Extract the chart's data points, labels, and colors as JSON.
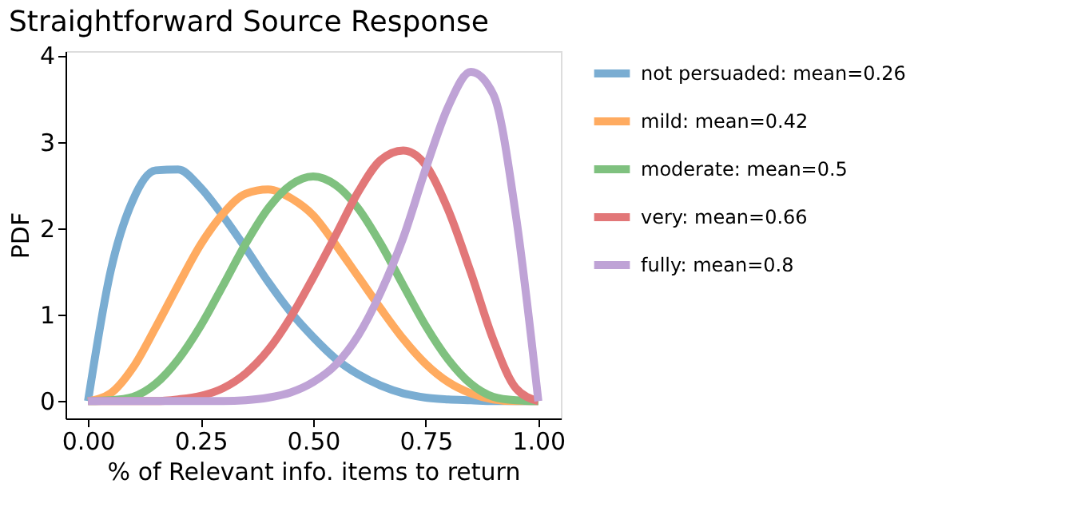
{
  "chart_data": {
    "type": "line",
    "title": "Straightforward Source Response",
    "xlabel": "% of Relevant info. items to return",
    "ylabel": "PDF",
    "x": [
      0,
      0.05,
      0.1,
      0.15,
      0.2,
      0.25,
      0.3,
      0.35,
      0.4,
      0.45,
      0.5,
      0.55,
      0.6,
      0.65,
      0.7,
      0.75,
      0.8,
      0.85,
      0.9,
      0.95,
      1
    ],
    "series": [
      {
        "name": "not persuaded: mean=0.26",
        "color": "#7aadd2",
        "values": [
          0,
          1.5,
          2.33,
          2.67,
          2.68,
          2.47,
          2.14,
          1.77,
          1.38,
          1.03,
          0.74,
          0.49,
          0.31,
          0.18,
          0.09,
          0.04,
          0.02,
          0.01,
          0,
          0,
          0
        ]
      },
      {
        "name": "mild: mean=0.42",
        "color": "#ffab60",
        "values": [
          0,
          0.09,
          0.39,
          0.85,
          1.34,
          1.81,
          2.17,
          2.4,
          2.45,
          2.35,
          2.15,
          1.81,
          1.44,
          1.07,
          0.72,
          0.43,
          0.22,
          0.09,
          0.02,
          0,
          0
        ]
      },
      {
        "name": "moderate: mean=0.5",
        "color": "#7fc17f",
        "values": [
          0,
          0.01,
          0.05,
          0.2,
          0.48,
          0.87,
          1.34,
          1.82,
          2.23,
          2.5,
          2.6,
          2.5,
          2.23,
          1.82,
          1.34,
          0.87,
          0.48,
          0.2,
          0.05,
          0.01,
          0
        ]
      },
      {
        "name": "very: mean=0.66",
        "color": "#e27778",
        "values": [
          0,
          0,
          0,
          0,
          0.02,
          0.06,
          0.15,
          0.32,
          0.59,
          0.97,
          1.43,
          1.92,
          2.42,
          2.79,
          2.9,
          2.73,
          2.21,
          1.49,
          0.71,
          0.15,
          0
        ]
      },
      {
        "name": "fully: mean=0.8",
        "color": "#bfa3d6",
        "values": [
          0,
          0,
          0,
          0,
          0,
          0,
          0,
          0.01,
          0.04,
          0.1,
          0.22,
          0.42,
          0.76,
          1.26,
          1.89,
          2.69,
          3.41,
          3.81,
          3.55,
          2.15,
          0
        ]
      }
    ],
    "xlim": [
      -0.05,
      1.05
    ],
    "xticks": [
      {
        "value": 0,
        "label": "0.00"
      },
      {
        "value": 0.25,
        "label": "0.25"
      },
      {
        "value": 0.5,
        "label": "0.50"
      },
      {
        "value": 0.75,
        "label": "0.75"
      },
      {
        "value": 1,
        "label": "1.00"
      }
    ],
    "ylim": [
      -0.2,
      4.05
    ],
    "yticks": [
      0,
      1,
      2,
      3,
      4
    ],
    "legend": "right",
    "grid": false,
    "marker": "none",
    "line_style": "solid"
  }
}
